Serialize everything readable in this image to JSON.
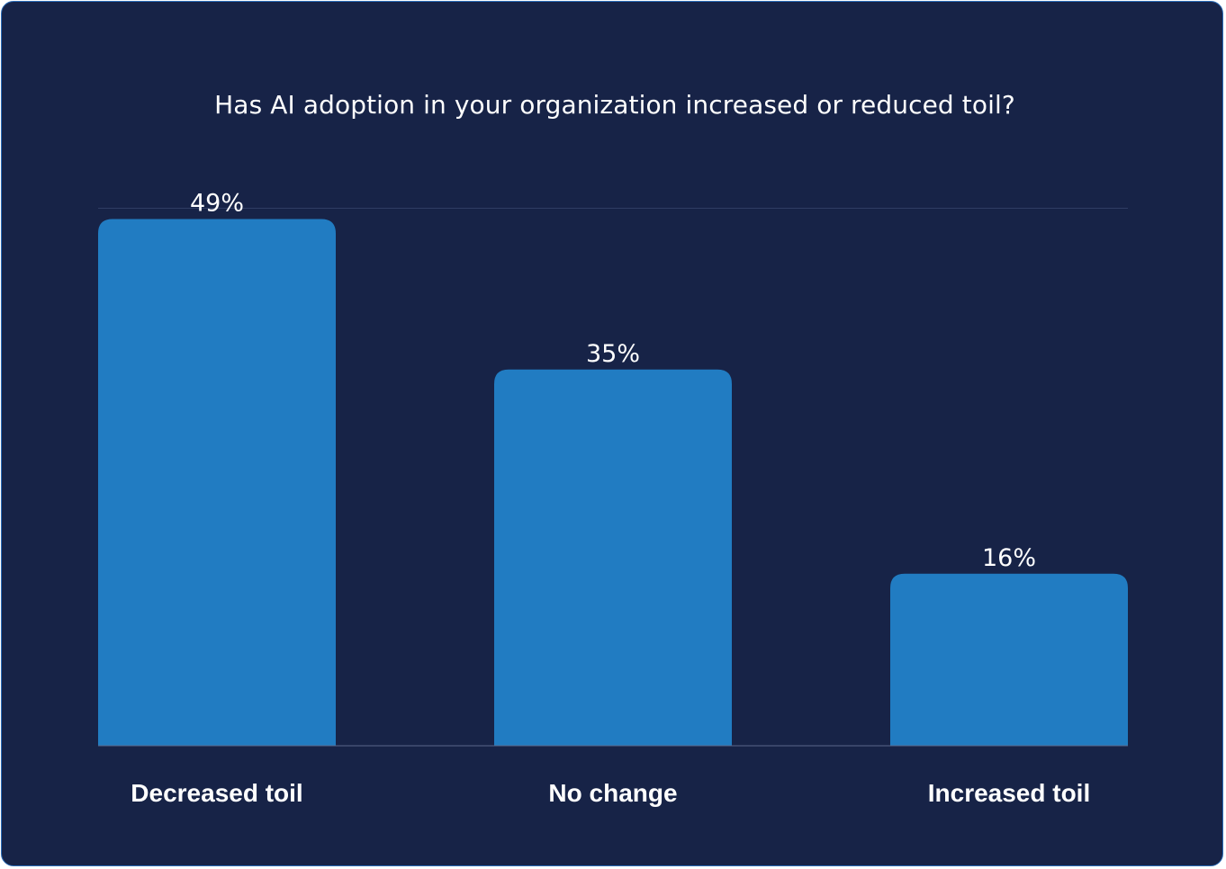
{
  "chart_data": {
    "type": "bar",
    "title": "Has AI adoption in your organization increased or reduced toil?",
    "categories": [
      "Decreased toil",
      "No change",
      "Increased toil"
    ],
    "values": [
      49,
      35,
      16
    ],
    "data_labels": [
      "49%",
      "35%",
      "16%"
    ],
    "xlabel": "",
    "ylabel": "",
    "ylim": [
      0,
      50
    ],
    "grid": false,
    "legend": "none",
    "colors": {
      "background": "#172347",
      "bar": "#217cc2",
      "text": "#ffffff",
      "axis": "#5a6688",
      "gridline": "#2f3d63",
      "border": "#2b6cb8"
    }
  }
}
